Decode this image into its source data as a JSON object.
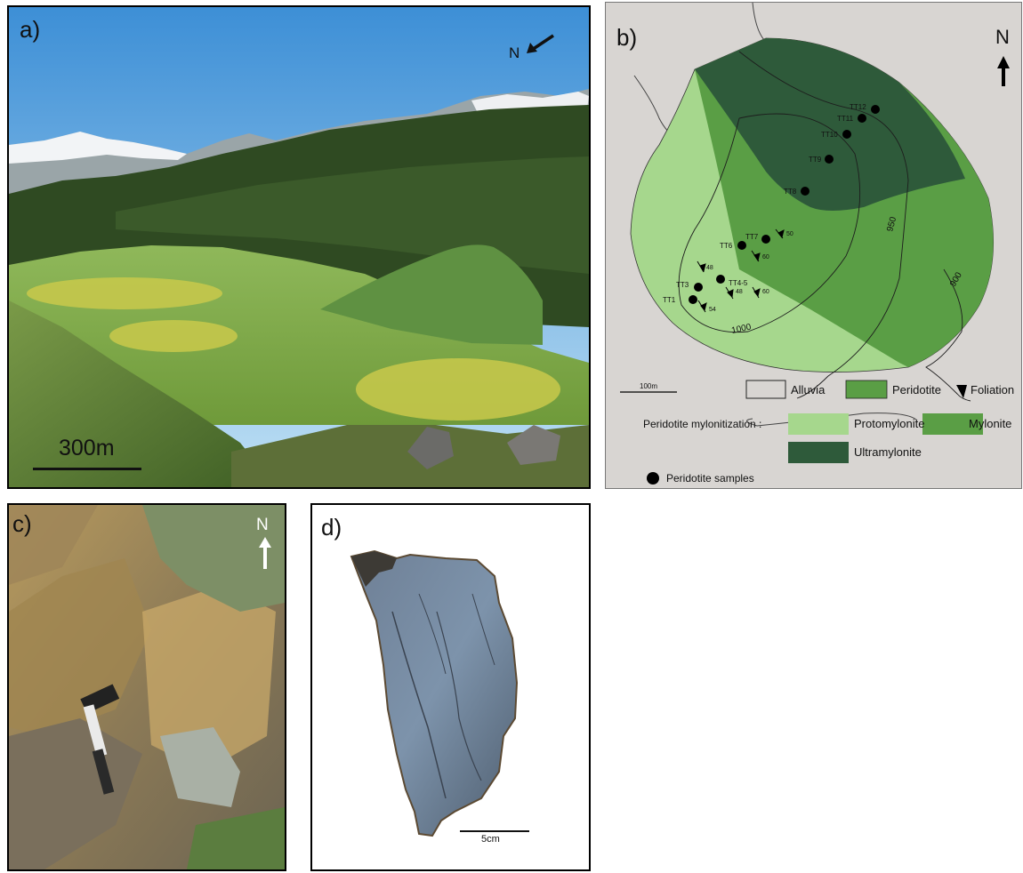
{
  "panel_a": {
    "label": "a)",
    "north": "N",
    "scale": "300m"
  },
  "panel_b": {
    "label": "b)",
    "north": "N",
    "samples": [
      "TT12",
      "TT11",
      "TT10",
      "TT9",
      "TT8",
      "TT7",
      "TT6",
      "TT4-5",
      "TT3",
      "TT1"
    ],
    "foliation_dips": [
      "50",
      "60",
      "48",
      "48",
      "60",
      "54"
    ],
    "contours": [
      "1000",
      "950",
      "900"
    ],
    "scale": "100m",
    "legend": {
      "alluvia": "Alluvia",
      "peridotite": "Peridotite",
      "foliation": "Foliation",
      "mylonitization_title": "Peridotite mylonitization :",
      "protomylonite": "Protomylonite",
      "mylonite": "Mylonite",
      "ultramylonite": "Ultramylonite",
      "samples": "Peridotite samples"
    },
    "colors": {
      "background": "#d8d5d2",
      "protomylonite": "#a6d78d",
      "mylonite": "#5a9e45",
      "ultramylonite": "#2e5a3a"
    }
  },
  "panel_c": {
    "label": "c)",
    "north": "N"
  },
  "panel_d": {
    "label": "d)",
    "scale": "5cm"
  }
}
